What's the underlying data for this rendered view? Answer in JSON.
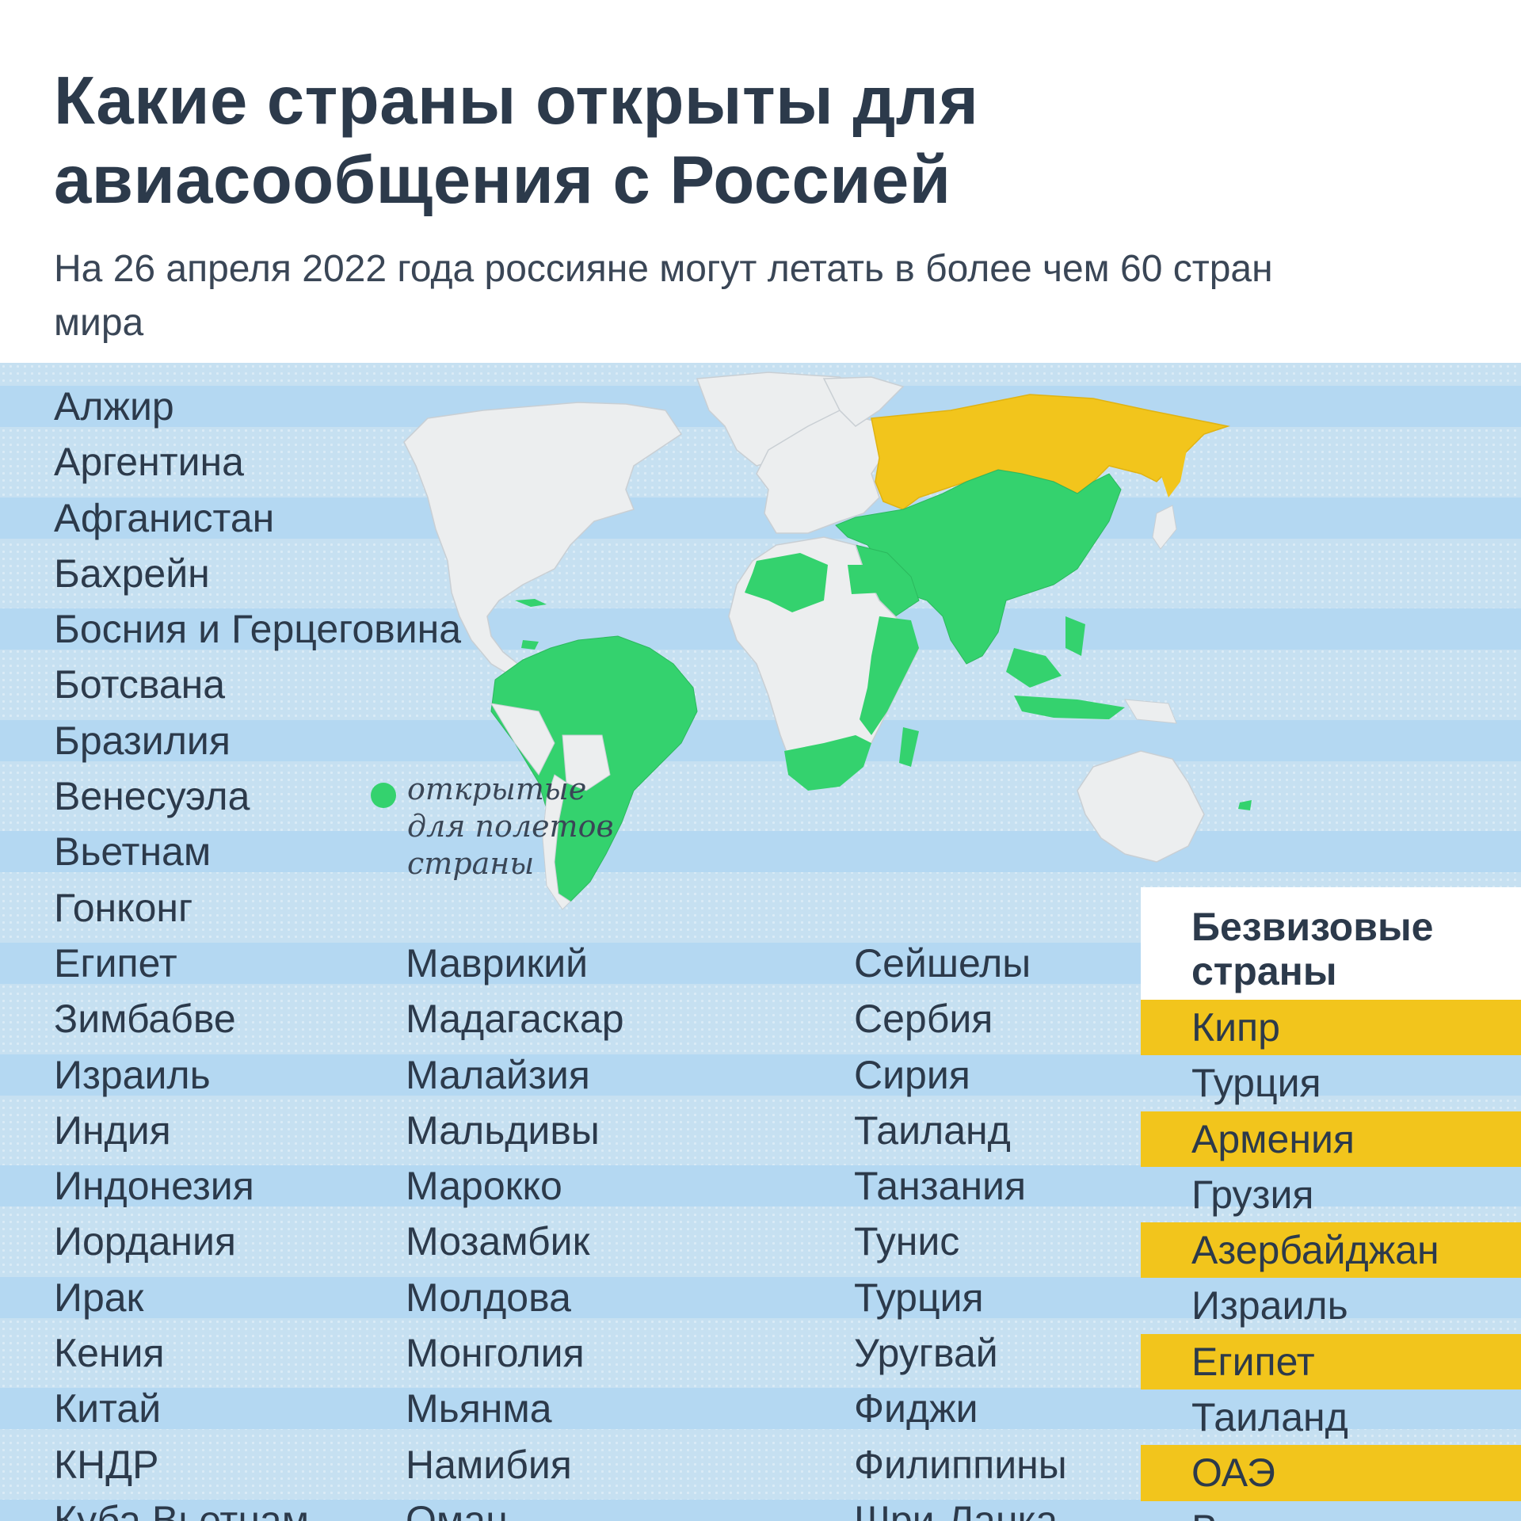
{
  "header": {
    "title_line1": "Какие страны открыты для",
    "title_line2": "авиасообщения с Россией",
    "subtitle": "На 26 апреля 2022 года россияне могут летать в более чем 60 стран мира"
  },
  "legend": {
    "line1": "открытые",
    "line2": "для полетов",
    "line3": "страны",
    "color": "#34d26e"
  },
  "map_colors": {
    "open": "#34d26e",
    "russia": "#f2c51c",
    "other_land": "#eceeef",
    "ocean": "#c6e0f1"
  },
  "columns": {
    "col1": [
      "Алжир",
      "Аргентина",
      "Афганистан",
      "Бахрейн",
      "Босния и Герцеговина",
      "Ботсвана",
      "Бразилия",
      "Венесуэла",
      "Вьетнам",
      "Гонконг",
      "Египет",
      "Зимбабве",
      "Израиль",
      "Индия",
      "Индонезия",
      "Иордания",
      "Ирак",
      "Кения",
      "Китай",
      "КНДР",
      "Куба Вьетнам"
    ],
    "col2": [
      "Маврикий",
      "Мадагаскар",
      "Малайзия",
      "Мальдивы",
      "Марокко",
      "Мозамбик",
      "Молдова",
      "Монголия",
      "Мьянма",
      "Намибия",
      "Оман"
    ],
    "col3": [
      "Сейшелы",
      "Сербия",
      "Сирия",
      "Таиланд",
      "Танзания",
      "Тунис",
      "Турция",
      "Уругвай",
      "Фиджи",
      "Филиппины",
      "Шри-Ланка"
    ]
  },
  "visa_free": {
    "title_line1": "Безвизовые",
    "title_line2": "страны",
    "items": [
      "Кипр",
      "Турция",
      "Армения",
      "Грузия",
      "Азербайджан",
      "Израиль",
      "Египет",
      "Таиланд",
      "ОАЭ",
      "Вьетнам"
    ]
  }
}
